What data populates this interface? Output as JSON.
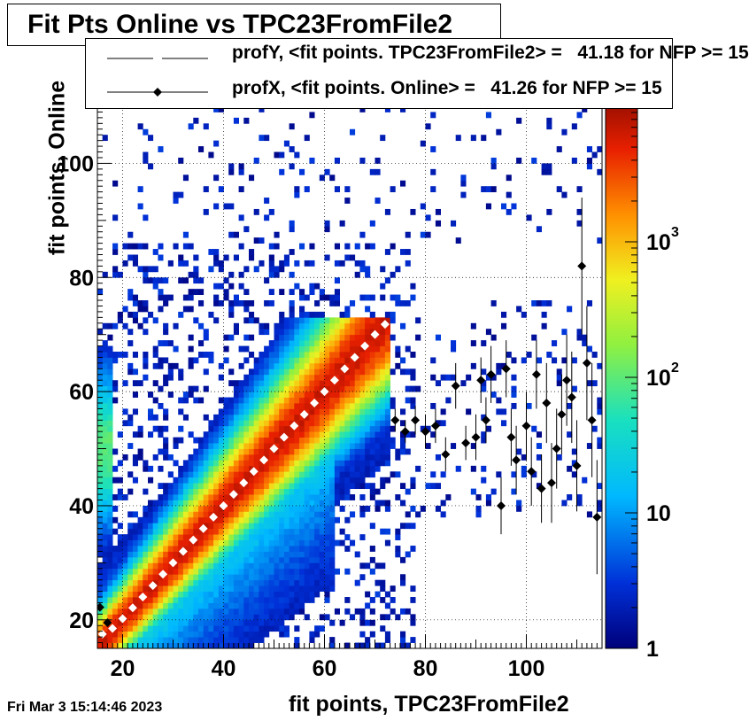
{
  "title": "Fit Pts Online vs TPC23FromFile2",
  "xlabel": "fit points, TPC23FromFile2",
  "ylabel": "fit points, Online",
  "datestamp": "Fri Mar  3 15:14:46 2023",
  "legend": [
    {
      "label": "profY, <fit points. TPC23FromFile2> =   41.18 for NFP >= 15",
      "style": "dashed-line"
    },
    {
      "label": "profX, <fit points. Online> =   41.26 for NFP >= 15",
      "style": "line-diamond-marker"
    }
  ],
  "colors": {
    "profY": "#ffffff",
    "profX": "#000000"
  },
  "chart_data": {
    "type": "heatmap",
    "title": "Fit Pts Online vs TPC23FromFile2",
    "xlabel": "fit points, TPC23FromFile2",
    "ylabel": "fit points, Online",
    "xlim": [
      15,
      115
    ],
    "ylim": [
      15,
      110
    ],
    "x_ticks": [
      20,
      40,
      60,
      80,
      100
    ],
    "y_ticks": [
      20,
      40,
      60,
      80,
      100
    ],
    "z_scale": "log",
    "zlim": [
      1,
      10000
    ],
    "z_ticks": [
      {
        "label": "1",
        "value": 1
      },
      {
        "label": "10",
        "value": 10
      },
      {
        "label": "10",
        "exp": "2",
        "value": 100
      },
      {
        "label": "10",
        "exp": "3",
        "value": 1000
      }
    ],
    "colormap": "rainbow",
    "grid": true,
    "bins": 1,
    "diagonal_end": 72,
    "profY": {
      "name": "profY",
      "x": [
        16,
        18,
        20,
        22,
        24,
        26,
        28,
        30,
        32,
        34,
        36,
        38,
        40,
        42,
        44,
        46,
        48,
        50,
        52,
        54,
        56,
        58,
        60,
        62,
        64,
        66,
        68,
        70,
        72
      ],
      "y": [
        17.5,
        18.5,
        20.2,
        22.1,
        24,
        26,
        28,
        30,
        32,
        34,
        36,
        38,
        40,
        42,
        44,
        46,
        48,
        50,
        52,
        54,
        56,
        58,
        60,
        62,
        64,
        66,
        68,
        70,
        71.8
      ]
    },
    "profX": {
      "name": "profX",
      "points": [
        {
          "x": 15.5,
          "y": 22.2,
          "e": 0.5
        },
        {
          "x": 17,
          "y": 19.5,
          "e": 0.4
        },
        {
          "x": 74,
          "y": 55,
          "e": 2
        },
        {
          "x": 76,
          "y": 53,
          "e": 2
        },
        {
          "x": 78,
          "y": 55,
          "e": 2.5
        },
        {
          "x": 80,
          "y": 53,
          "e": 3
        },
        {
          "x": 82,
          "y": 54,
          "e": 3
        },
        {
          "x": 84,
          "y": 49,
          "e": 3
        },
        {
          "x": 86,
          "y": 61,
          "e": 4
        },
        {
          "x": 88,
          "y": 51,
          "e": 3
        },
        {
          "x": 90,
          "y": 52,
          "e": 4
        },
        {
          "x": 91,
          "y": 62,
          "e": 4
        },
        {
          "x": 92,
          "y": 55,
          "e": 4
        },
        {
          "x": 93,
          "y": 63,
          "e": 5
        },
        {
          "x": 95,
          "y": 40,
          "e": 5
        },
        {
          "x": 96,
          "y": 64,
          "e": 5
        },
        {
          "x": 97,
          "y": 52,
          "e": 5
        },
        {
          "x": 98,
          "y": 48,
          "e": 6
        },
        {
          "x": 100,
          "y": 54,
          "e": 6
        },
        {
          "x": 101,
          "y": 46,
          "e": 6
        },
        {
          "x": 102,
          "y": 63,
          "e": 6
        },
        {
          "x": 103,
          "y": 43,
          "e": 6
        },
        {
          "x": 104,
          "y": 58,
          "e": 7
        },
        {
          "x": 105,
          "y": 44,
          "e": 7
        },
        {
          "x": 106,
          "y": 50,
          "e": 7
        },
        {
          "x": 107,
          "y": 56,
          "e": 7
        },
        {
          "x": 108,
          "y": 62,
          "e": 8
        },
        {
          "x": 109,
          "y": 59,
          "e": 8
        },
        {
          "x": 110,
          "y": 47,
          "e": 8
        },
        {
          "x": 111,
          "y": 82,
          "e": 12
        },
        {
          "x": 112,
          "y": 65,
          "e": 10
        },
        {
          "x": 113,
          "y": 55,
          "e": 10
        },
        {
          "x": 114,
          "y": 38,
          "e": 10
        }
      ]
    }
  }
}
